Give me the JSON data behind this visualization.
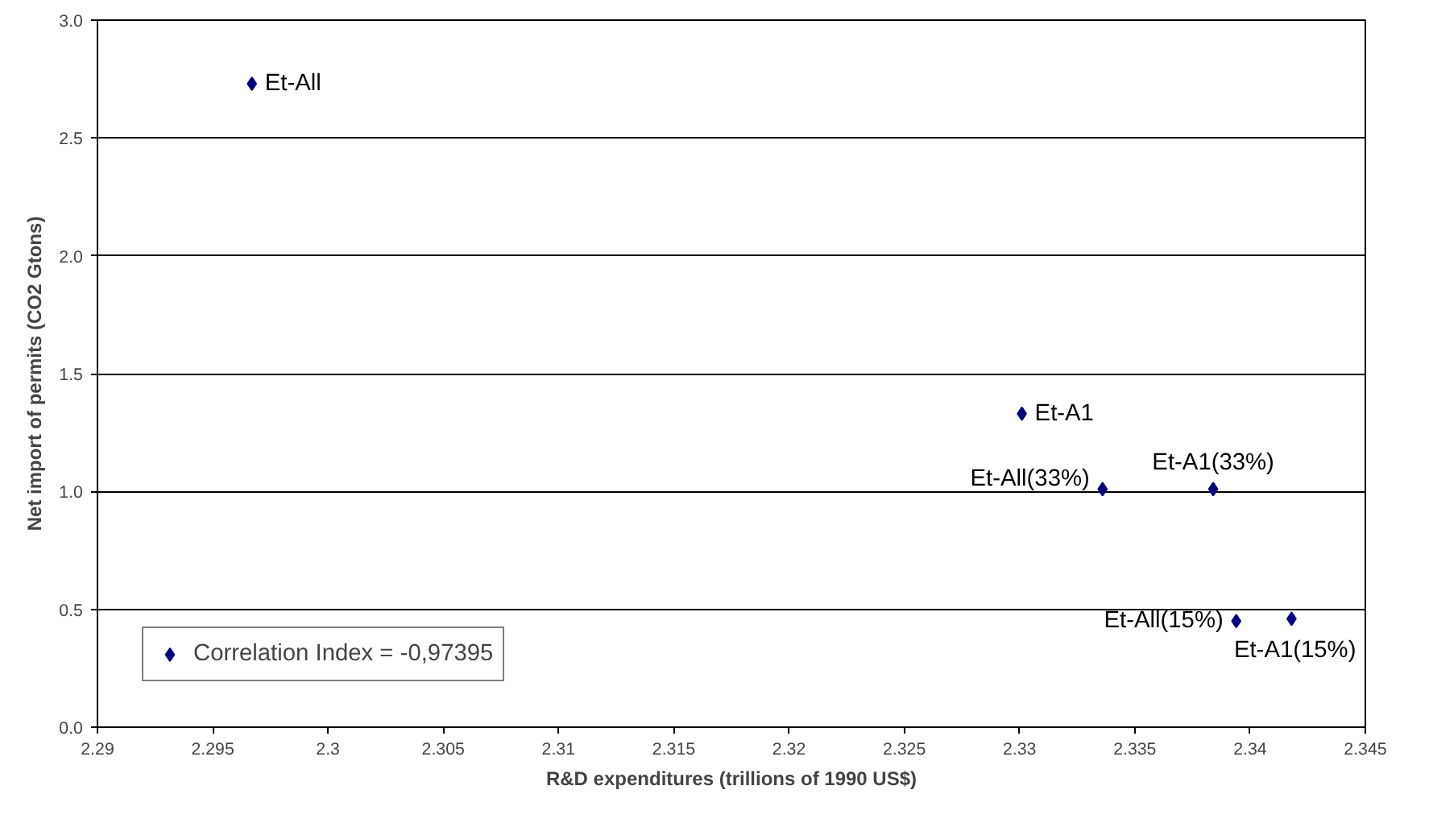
{
  "chart_data": {
    "type": "scatter",
    "xlabel": "R&D expenditures (trillions of 1990 US$)",
    "ylabel": "Net import of permits (CO2 Gtons)",
    "series": [
      {
        "name": "Correlation Index = -0,97395",
        "color": "#000080",
        "x": [
          2.2967,
          2.3301,
          2.3336,
          2.3384,
          2.3394,
          2.3418
        ],
        "values": [
          2.73,
          1.33,
          1.01,
          1.01,
          0.45,
          0.46
        ]
      }
    ],
    "annotations": [
      {
        "text": "Et-All",
        "x": 2.2967,
        "y": 2.73
      },
      {
        "text": "Et-A1",
        "x": 2.3301,
        "y": 1.33
      },
      {
        "text": "Et-All(33%)",
        "x": 2.3336,
        "y": 1.01
      },
      {
        "text": "Et-A1(33%)",
        "x": 2.3384,
        "y": 1.01
      },
      {
        "text": "Et-All(15%)",
        "x": 2.3394,
        "y": 0.45
      },
      {
        "text": "Et-A1(15%)",
        "x": 2.3418,
        "y": 0.46
      }
    ],
    "xlim": [
      2.29,
      2.345
    ],
    "xticks": [
      2.29,
      2.295,
      2.3,
      2.305,
      2.31,
      2.315,
      2.32,
      2.325,
      2.33,
      2.335,
      2.34,
      2.345
    ],
    "ylim": [
      0,
      3
    ],
    "yticks": [
      {
        "value": 0,
        "label": "0.0"
      },
      {
        "value": 0.5,
        "label": "0.5"
      },
      {
        "value": 1,
        "label": "1.0"
      },
      {
        "value": 1.5,
        "label": "1.5"
      },
      {
        "value": 2,
        "label": "2.0"
      },
      {
        "value": 2.5,
        "label": "2.5"
      },
      {
        "value": 3,
        "label": "3.0"
      }
    ],
    "grid": "y",
    "legend": "bottom left",
    "marker": "diamond"
  }
}
